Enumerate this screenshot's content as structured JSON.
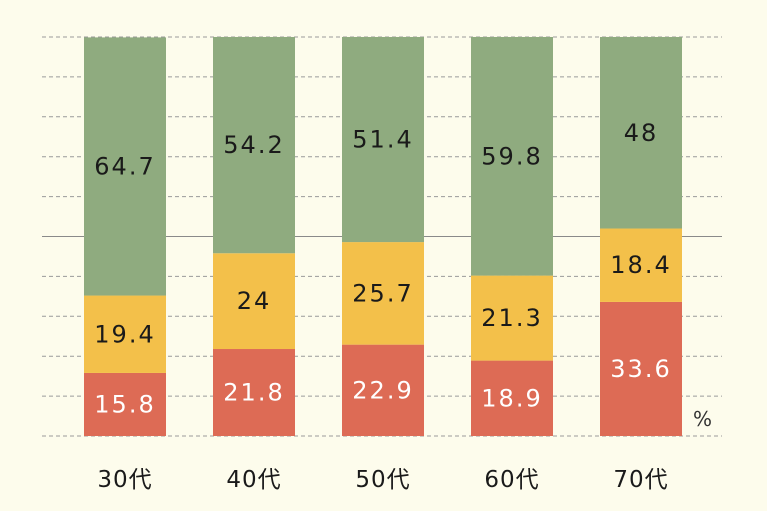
{
  "chart_data": {
    "type": "bar",
    "stacked": true,
    "categories": [
      "30代",
      "40代",
      "50代",
      "60代",
      "70代"
    ],
    "series": [
      {
        "name": "red",
        "color": "#dd6b55",
        "label_color": "#ffffff",
        "values": [
          15.8,
          21.8,
          22.9,
          18.9,
          33.6
        ]
      },
      {
        "name": "yellow",
        "color": "#f3c04a",
        "label_color": "#1a1a1a",
        "values": [
          19.4,
          24,
          25.7,
          21.3,
          18.4
        ]
      },
      {
        "name": "green",
        "color": "#8fab7f",
        "label_color": "#1a1a1a",
        "values": [
          64.7,
          54.2,
          51.4,
          59.8,
          48
        ]
      }
    ],
    "unit": "%",
    "ylim": [
      0,
      100
    ],
    "grid": true
  },
  "colors": {
    "background": "#fdfcec",
    "gridline": "#9a9a9a",
    "midline": "#8a8a8a"
  }
}
